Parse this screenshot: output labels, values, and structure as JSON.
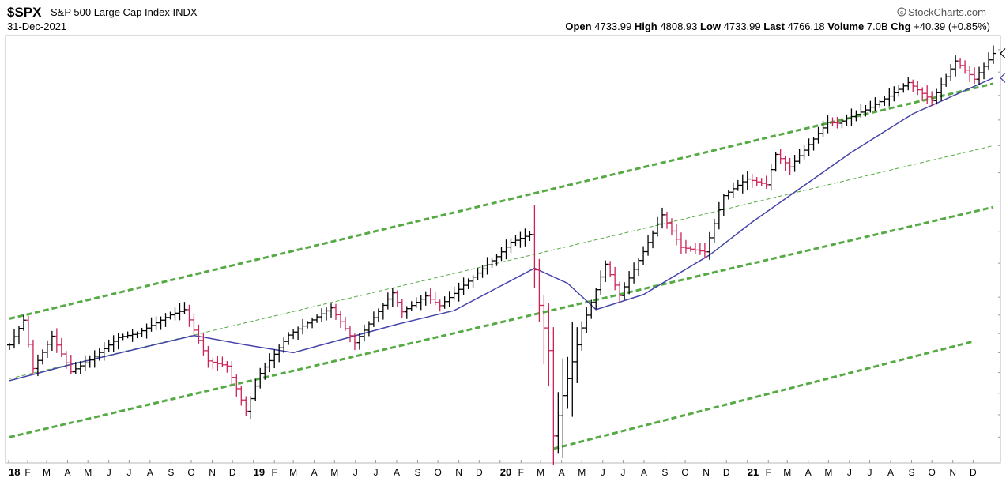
{
  "chart_data": {
    "type": "ohlc",
    "symbol": "$SPX",
    "name": "S&P 500 Large Cap Index",
    "exchange": "INDX",
    "date": "31-Dec-2021",
    "watermark": "StockCharts.com",
    "stats": {
      "open_label": "Open",
      "open": "4733.99",
      "high_label": "High",
      "high": "4808.93",
      "low_label": "Low",
      "low": "4733.99",
      "last_label": "Last",
      "last": "4766.18",
      "volume_label": "Volume",
      "volume": "7.0B",
      "chg_label": "Chg",
      "chg": "+40.39 (+0.85%)"
    },
    "y_scale": "log",
    "x_range": [
      "2018-01-05",
      "2021-12-31"
    ],
    "x_ticks": [
      {
        "label": "18",
        "date": "2018-01-01",
        "bold": true
      },
      {
        "label": "F",
        "date": "2018-02-01"
      },
      {
        "label": "M",
        "date": "2018-03-01"
      },
      {
        "label": "A",
        "date": "2018-04-01"
      },
      {
        "label": "M",
        "date": "2018-05-01"
      },
      {
        "label": "J",
        "date": "2018-06-01"
      },
      {
        "label": "J",
        "date": "2018-07-01"
      },
      {
        "label": "A",
        "date": "2018-08-01"
      },
      {
        "label": "S",
        "date": "2018-09-01"
      },
      {
        "label": "O",
        "date": "2018-10-01"
      },
      {
        "label": "N",
        "date": "2018-11-01"
      },
      {
        "label": "D",
        "date": "2018-12-01"
      },
      {
        "label": "19",
        "date": "2019-01-01",
        "bold": true
      },
      {
        "label": "F",
        "date": "2019-02-01"
      },
      {
        "label": "M",
        "date": "2019-03-01"
      },
      {
        "label": "A",
        "date": "2019-04-01"
      },
      {
        "label": "M",
        "date": "2019-05-01"
      },
      {
        "label": "J",
        "date": "2019-06-01"
      },
      {
        "label": "J",
        "date": "2019-07-01"
      },
      {
        "label": "A",
        "date": "2019-08-01"
      },
      {
        "label": "S",
        "date": "2019-09-01"
      },
      {
        "label": "O",
        "date": "2019-10-01"
      },
      {
        "label": "N",
        "date": "2019-11-01"
      },
      {
        "label": "D",
        "date": "2019-12-01"
      },
      {
        "label": "20",
        "date": "2020-01-01",
        "bold": true
      },
      {
        "label": "F",
        "date": "2020-02-01"
      },
      {
        "label": "M",
        "date": "2020-03-01"
      },
      {
        "label": "A",
        "date": "2020-04-01"
      },
      {
        "label": "M",
        "date": "2020-05-01"
      },
      {
        "label": "J",
        "date": "2020-06-01"
      },
      {
        "label": "J",
        "date": "2020-07-01"
      },
      {
        "label": "A",
        "date": "2020-08-01"
      },
      {
        "label": "S",
        "date": "2020-09-01"
      },
      {
        "label": "O",
        "date": "2020-10-01"
      },
      {
        "label": "N",
        "date": "2020-11-01"
      },
      {
        "label": "D",
        "date": "2020-12-01"
      },
      {
        "label": "21",
        "date": "2021-01-01",
        "bold": true
      },
      {
        "label": "F",
        "date": "2021-02-01"
      },
      {
        "label": "M",
        "date": "2021-03-01"
      },
      {
        "label": "A",
        "date": "2021-04-01"
      },
      {
        "label": "M",
        "date": "2021-05-01"
      },
      {
        "label": "J",
        "date": "2021-06-01"
      },
      {
        "label": "J",
        "date": "2021-07-01"
      },
      {
        "label": "A",
        "date": "2021-08-01"
      },
      {
        "label": "S",
        "date": "2021-09-01"
      },
      {
        "label": "O",
        "date": "2021-10-01"
      },
      {
        "label": "N",
        "date": "2021-11-01"
      },
      {
        "label": "D",
        "date": "2021-12-01"
      }
    ],
    "up_color": "#000000",
    "down_color": "#cc2255",
    "ma_color": "#4444aa",
    "channel_color": "#55aa44",
    "price_path": [
      [
        "2018-01-05",
        2740
      ],
      [
        "2018-01-26",
        2872
      ],
      [
        "2018-02-09",
        2620
      ],
      [
        "2018-03-09",
        2786
      ],
      [
        "2018-04-06",
        2604
      ],
      [
        "2018-05-04",
        2663
      ],
      [
        "2018-06-15",
        2779
      ],
      [
        "2018-07-13",
        2801
      ],
      [
        "2018-08-31",
        2901
      ],
      [
        "2018-09-21",
        2930
      ],
      [
        "2018-10-26",
        2658
      ],
      [
        "2018-11-23",
        2632
      ],
      [
        "2018-12-21",
        2416
      ],
      [
        "2019-01-11",
        2596
      ],
      [
        "2019-02-22",
        2792
      ],
      [
        "2019-04-26",
        2940
      ],
      [
        "2019-05-31",
        2752
      ],
      [
        "2019-07-26",
        3025
      ],
      [
        "2019-08-09",
        2918
      ],
      [
        "2019-09-13",
        3007
      ],
      [
        "2019-10-04",
        2952
      ],
      [
        "2019-11-29",
        3141
      ],
      [
        "2019-12-27",
        3240
      ],
      [
        "2020-01-17",
        3330
      ],
      [
        "2020-02-14",
        3380
      ],
      [
        "2020-02-28",
        2954
      ],
      [
        "2020-03-13",
        2711
      ],
      [
        "2020-03-20",
        2305
      ],
      [
        "2020-04-03",
        2489
      ],
      [
        "2020-05-01",
        2830
      ],
      [
        "2020-06-05",
        3194
      ],
      [
        "2020-06-26",
        3009
      ],
      [
        "2020-07-31",
        3271
      ],
      [
        "2020-08-28",
        3508
      ],
      [
        "2020-09-25",
        3298
      ],
      [
        "2020-10-30",
        3270
      ],
      [
        "2020-11-27",
        3638
      ],
      [
        "2020-12-31",
        3756
      ],
      [
        "2021-01-29",
        3714
      ],
      [
        "2021-02-12",
        3934
      ],
      [
        "2021-03-05",
        3842
      ],
      [
        "2021-04-30",
        4181
      ],
      [
        "2021-05-14",
        4174
      ],
      [
        "2021-06-25",
        4281
      ],
      [
        "2021-07-30",
        4395
      ],
      [
        "2021-08-27",
        4509
      ],
      [
        "2021-10-01",
        4357
      ],
      [
        "2021-11-05",
        4698
      ],
      [
        "2021-12-03",
        4538
      ],
      [
        "2021-12-31",
        4766
      ]
    ],
    "moving_average_path": [
      [
        "2018-01-05",
        2560
      ],
      [
        "2018-04-06",
        2640
      ],
      [
        "2018-10-05",
        2790
      ],
      [
        "2018-12-21",
        2740
      ],
      [
        "2019-03-01",
        2700
      ],
      [
        "2019-08-02",
        2850
      ],
      [
        "2019-10-25",
        2925
      ],
      [
        "2020-02-21",
        3170
      ],
      [
        "2020-04-10",
        3080
      ],
      [
        "2020-05-22",
        2930
      ],
      [
        "2020-07-31",
        3015
      ],
      [
        "2020-11-06",
        3250
      ],
      [
        "2021-01-08",
        3460
      ],
      [
        "2021-06-04",
        3950
      ],
      [
        "2021-09-03",
        4250
      ],
      [
        "2021-12-31",
        4550
      ]
    ],
    "channel_lines": [
      {
        "style": "thick-dash",
        "start": [
          "2018-01-05",
          2880
        ],
        "end": [
          "2021-12-31",
          4500
        ]
      },
      {
        "style": "thin-dash",
        "start": [
          "2018-01-05",
          2570
        ],
        "end": [
          "2021-12-31",
          4000
        ]
      },
      {
        "style": "thick-dash",
        "start": [
          "2018-01-05",
          2300
        ],
        "end": [
          "2021-12-31",
          3560
        ]
      },
      {
        "style": "thick-dash",
        "start": [
          "2020-03-20",
          2250
        ],
        "end": [
          "2021-12-03",
          2760
        ]
      }
    ]
  }
}
